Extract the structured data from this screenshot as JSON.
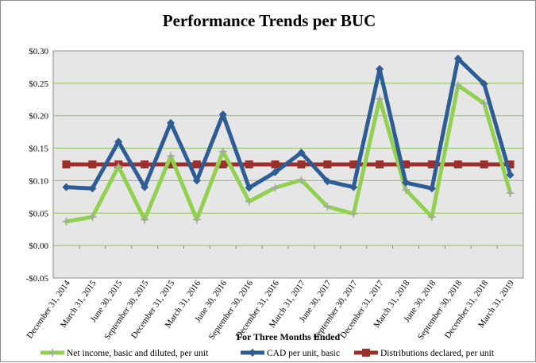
{
  "chart_data": {
    "type": "line",
    "title": "Performance Trends per BUC",
    "xlabel": "For Three Months Ended",
    "ylabel": "",
    "ylim": [
      -0.05,
      0.3
    ],
    "yticks": [
      -0.05,
      0.0,
      0.05,
      0.1,
      0.15,
      0.2,
      0.25,
      0.3
    ],
    "ytick_labels": [
      "-$0.05",
      "$0.00",
      "$0.05",
      "$0.10",
      "$0.15",
      "$0.20",
      "$0.25",
      "$0.30"
    ],
    "grid": true,
    "legend_position": "bottom",
    "categories": [
      "December 31, 2014",
      "March 31, 2015",
      "June 30, 2015",
      "September 30, 2015",
      "December 31, 2015",
      "March 31, 2016",
      "June 30, 2016",
      "September 30, 2016",
      "December 31, 2016",
      "March 31, 2017",
      "June 30, 2017",
      "September 30, 2017",
      "December 31, 2017",
      "March 31, 2018",
      "June 30, 2018",
      "September 30, 2018",
      "December 31, 2018",
      "March 31, 2019"
    ],
    "series": [
      {
        "name": "Net income, basic and diluted, per unit",
        "color": "#92d050",
        "marker": "plus",
        "values": [
          0.037,
          0.044,
          0.122,
          0.04,
          0.138,
          0.04,
          0.145,
          0.068,
          0.089,
          0.101,
          0.06,
          0.049,
          0.226,
          0.086,
          0.044,
          0.247,
          0.219,
          0.081
        ]
      },
      {
        "name": "CAD per unit, basic",
        "color": "#2e5c94",
        "marker": "diamond",
        "values": [
          0.09,
          0.088,
          0.16,
          0.09,
          0.189,
          0.1,
          0.202,
          0.089,
          0.113,
          0.143,
          0.099,
          0.09,
          0.272,
          0.097,
          0.088,
          0.288,
          0.249,
          0.109
        ]
      },
      {
        "name": "Distributions declared, per unit",
        "color": "#9b2f2c",
        "marker": "square",
        "values": [
          0.125,
          0.125,
          0.125,
          0.125,
          0.125,
          0.125,
          0.125,
          0.125,
          0.125,
          0.125,
          0.125,
          0.125,
          0.125,
          0.125,
          0.125,
          0.125,
          0.125,
          0.125
        ]
      }
    ]
  }
}
